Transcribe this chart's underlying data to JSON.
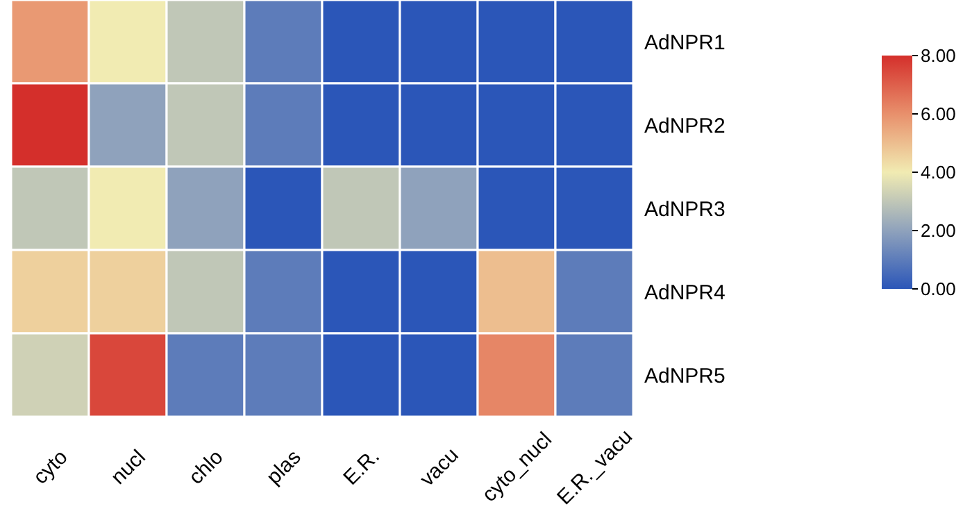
{
  "chart_data": {
    "type": "heatmap",
    "categories": [
      "cyto",
      "nucl",
      "chlo",
      "plas",
      "E.R.",
      "vacu",
      "cyto_nucl",
      "E.R._vacu"
    ],
    "y_categories": [
      "AdNPR1",
      "AdNPR2",
      "AdNPR3",
      "AdNPR4",
      "AdNPR5"
    ],
    "cells": [
      [
        5.8,
        4,
        3,
        1,
        0,
        0,
        0,
        0
      ],
      [
        8,
        2,
        3,
        1,
        0,
        0,
        0,
        0
      ],
      [
        3,
        4,
        2,
        0,
        3,
        2,
        0,
        0
      ],
      [
        4.6,
        4.6,
        3,
        1,
        0,
        0,
        5,
        1
      ],
      [
        3.3,
        7.5,
        1,
        1,
        0,
        0,
        6.2,
        1
      ]
    ],
    "clim": [
      0,
      8
    ],
    "cticks": [
      {
        "value": 0,
        "label": "0.00"
      },
      {
        "value": 2,
        "label": "2.00"
      },
      {
        "value": 4,
        "label": "4.00"
      },
      {
        "value": 6,
        "label": "6.00"
      },
      {
        "value": 8,
        "label": "8.00"
      }
    ]
  }
}
